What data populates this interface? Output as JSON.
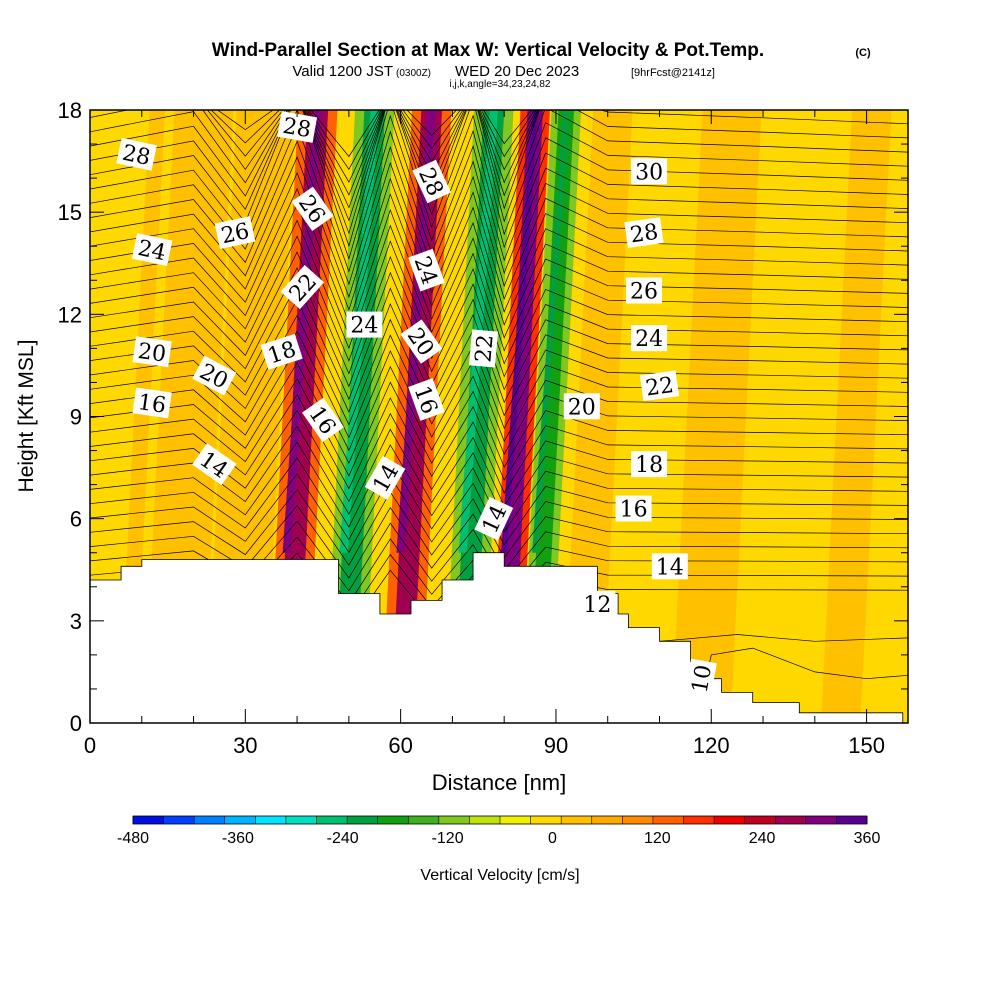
{
  "chart_data": {
    "type": "heatmap",
    "title": "Wind-Parallel Section at Max W: Vertical Velocity & Pot.Temp.",
    "title_mark": "(C)",
    "subtitle": {
      "valid": "Valid 1200 JST",
      "utc": "(0300Z)",
      "date": "WED 20 Dec 2023",
      "forecast": "[9hrFcst@2141z]",
      "indices": "i,j,k,angle=34,23,24,82"
    },
    "xlabel": "Distance [nm]",
    "ylabel": "Height [Kft MSL]",
    "xlim": [
      0,
      158
    ],
    "ylim": [
      0,
      18
    ],
    "x_ticks": [
      0,
      30,
      60,
      90,
      120,
      150
    ],
    "y_ticks": [
      0,
      3,
      6,
      9,
      12,
      15,
      18
    ],
    "grid": false,
    "colorbar": {
      "label": "Vertical Velocity [cm/s]",
      "tick_labels": [
        "-480",
        "-360",
        "-240",
        "-120",
        "0",
        "120",
        "240",
        "360"
      ],
      "tick_values": [
        -480,
        -360,
        -240,
        -120,
        0,
        120,
        240,
        360
      ],
      "min": -480,
      "max": 360,
      "colors": [
        "#0010e0",
        "#0040ff",
        "#0080ff",
        "#00b4ff",
        "#00e4ff",
        "#00e0c0",
        "#00c070",
        "#00a040",
        "#10a010",
        "#40b020",
        "#80c820",
        "#c0e010",
        "#f0f000",
        "#ffd800",
        "#ffc000",
        "#ffa800",
        "#ff8c00",
        "#ff6000",
        "#ff3000",
        "#ee0000",
        "#c00020",
        "#a00050",
        "#800080",
        "#5a0090"
      ]
    },
    "velocity_bands": [
      {
        "x": 7,
        "w": 3,
        "v": 12
      },
      {
        "x": 16,
        "w": 6,
        "v": 20
      },
      {
        "x": 28,
        "w": 6,
        "v": 30
      },
      {
        "x": 38,
        "w": 4,
        "v": 260
      },
      {
        "x": 49,
        "w": 4,
        "v": -220
      },
      {
        "x": 60,
        "w": 4,
        "v": 260
      },
      {
        "x": 72,
        "w": 4,
        "v": -230
      },
      {
        "x": 80,
        "w": 3,
        "v": 320
      },
      {
        "x": 86,
        "w": 3,
        "v": -200
      },
      {
        "x": 95,
        "w": 4,
        "v": 40
      },
      {
        "x": 118,
        "w": 6,
        "v": 40
      },
      {
        "x": 145,
        "w": 4,
        "v": 30
      }
    ],
    "terrain": [
      [
        0,
        4.2
      ],
      [
        6,
        4.2
      ],
      [
        6,
        4.6
      ],
      [
        10,
        4.6
      ],
      [
        10,
        4.8
      ],
      [
        48,
        4.8
      ],
      [
        48,
        3.8
      ],
      [
        56,
        3.8
      ],
      [
        56,
        3.2
      ],
      [
        62,
        3.2
      ],
      [
        62,
        3.6
      ],
      [
        68,
        3.6
      ],
      [
        68,
        4.2
      ],
      [
        74,
        4.2
      ],
      [
        74,
        5.0
      ],
      [
        80,
        5.0
      ],
      [
        80,
        4.6
      ],
      [
        98,
        4.6
      ],
      [
        98,
        3.8
      ],
      [
        102,
        3.8
      ],
      [
        102,
        3.2
      ],
      [
        104,
        3.2
      ],
      [
        104,
        2.8
      ],
      [
        110,
        2.8
      ],
      [
        110,
        2.4
      ],
      [
        116,
        2.4
      ],
      [
        116,
        1.8
      ],
      [
        118,
        1.8
      ],
      [
        118,
        1.3
      ],
      [
        122,
        1.3
      ],
      [
        122,
        0.9
      ],
      [
        128,
        0.9
      ],
      [
        128,
        0.6
      ],
      [
        137,
        0.6
      ],
      [
        137,
        0.3
      ],
      [
        157,
        0.3
      ],
      [
        157,
        0.0
      ]
    ],
    "theta_labels": [
      {
        "text": "28",
        "x": 9,
        "y": 16.7,
        "r": 12
      },
      {
        "text": "24",
        "x": 12,
        "y": 13.9,
        "r": 12
      },
      {
        "text": "20",
        "x": 12,
        "y": 10.9,
        "r": 8
      },
      {
        "text": "16",
        "x": 12,
        "y": 9.4,
        "r": 8
      },
      {
        "text": "26",
        "x": 28,
        "y": 14.4,
        "r": -12
      },
      {
        "text": "20",
        "x": 24,
        "y": 10.2,
        "r": 28
      },
      {
        "text": "14",
        "x": 24,
        "y": 7.6,
        "r": 35
      },
      {
        "text": "28",
        "x": 40,
        "y": 17.5,
        "r": 10
      },
      {
        "text": "26",
        "x": 43,
        "y": 15.1,
        "r": 55
      },
      {
        "text": "22",
        "x": 41,
        "y": 12.8,
        "r": -48
      },
      {
        "text": "18",
        "x": 37,
        "y": 10.9,
        "r": -18
      },
      {
        "text": "16",
        "x": 45,
        "y": 8.9,
        "r": 55
      },
      {
        "text": "24",
        "x": 53,
        "y": 11.7,
        "r": 0
      },
      {
        "text": "14",
        "x": 57,
        "y": 7.2,
        "r": -60
      },
      {
        "text": "28",
        "x": 66,
        "y": 15.9,
        "r": 65
      },
      {
        "text": "24",
        "x": 65,
        "y": 13.3,
        "r": 70
      },
      {
        "text": "20",
        "x": 64,
        "y": 11.2,
        "r": 55
      },
      {
        "text": "16",
        "x": 65,
        "y": 9.5,
        "r": 70
      },
      {
        "text": "22",
        "x": 76,
        "y": 11.0,
        "r": -85
      },
      {
        "text": "14",
        "x": 78,
        "y": 6.0,
        "r": -65
      },
      {
        "text": "20",
        "x": 95,
        "y": 9.3,
        "r": 0
      },
      {
        "text": "30",
        "x": 108,
        "y": 16.2,
        "r": 0
      },
      {
        "text": "28",
        "x": 107,
        "y": 14.4,
        "r": -8
      },
      {
        "text": "26",
        "x": 107,
        "y": 12.7,
        "r": 0
      },
      {
        "text": "24",
        "x": 108,
        "y": 11.3,
        "r": 0
      },
      {
        "text": "22",
        "x": 110,
        "y": 9.9,
        "r": -8
      },
      {
        "text": "18",
        "x": 108,
        "y": 7.6,
        "r": 0
      },
      {
        "text": "16",
        "x": 105,
        "y": 6.3,
        "r": 0
      },
      {
        "text": "14",
        "x": 112,
        "y": 4.6,
        "r": 0
      },
      {
        "text": "12",
        "x": 98,
        "y": 3.5,
        "r": 0
      },
      {
        "text": "10",
        "x": 118,
        "y": 1.3,
        "r": -80
      }
    ]
  }
}
